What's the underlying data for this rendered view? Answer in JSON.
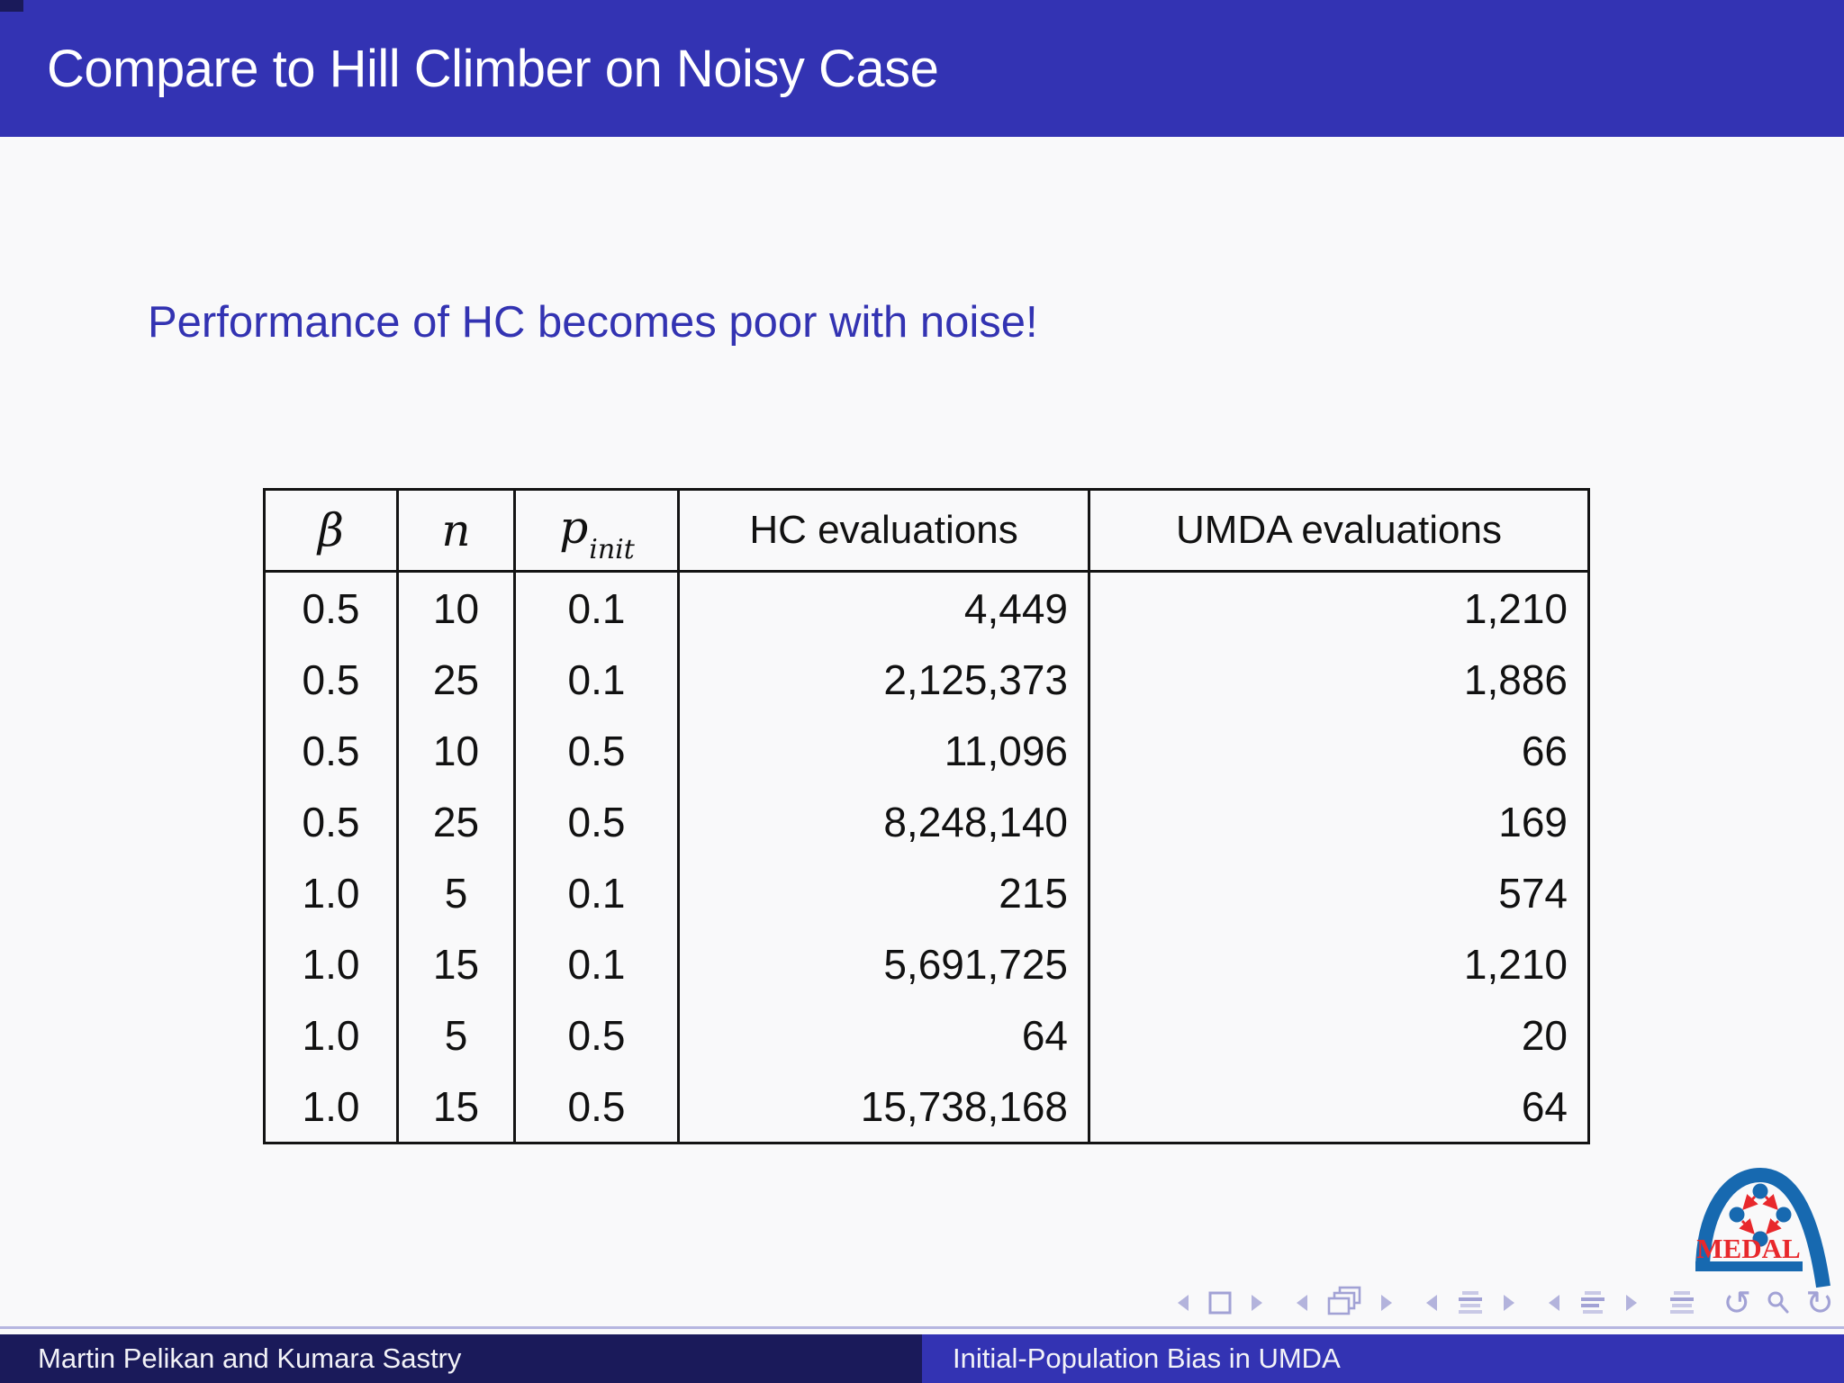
{
  "header": {
    "title": "Compare to Hill Climber on Noisy Case"
  },
  "body": {
    "subtitle": "Performance of HC becomes poor with noise!"
  },
  "table": {
    "columns": [
      {
        "label": "β",
        "math": true
      },
      {
        "label": "n",
        "math": true
      },
      {
        "label": "p",
        "sub": "init",
        "math": true
      },
      {
        "label": "HC evaluations"
      },
      {
        "label": "UMDA evaluations"
      }
    ],
    "rows": [
      [
        "0.5",
        "10",
        "0.1",
        "4,449",
        "1,210"
      ],
      [
        "0.5",
        "25",
        "0.1",
        "2,125,373",
        "1,886"
      ],
      [
        "0.5",
        "10",
        "0.5",
        "11,096",
        "66"
      ],
      [
        "0.5",
        "25",
        "0.5",
        "8,248,140",
        "169"
      ],
      [
        "1.0",
        "5",
        "0.1",
        "215",
        "574"
      ],
      [
        "1.0",
        "15",
        "0.1",
        "5,691,725",
        "1,210"
      ],
      [
        "1.0",
        "5",
        "0.5",
        "64",
        "20"
      ],
      [
        "1.0",
        "15",
        "0.5",
        "15,738,168",
        "64"
      ]
    ]
  },
  "logo": {
    "text": "MEDAL"
  },
  "navigation": {
    "groups": [
      [
        {
          "name": "prev-slide-icon",
          "type": "tri-left"
        },
        {
          "name": "slide-icon",
          "type": "square"
        },
        {
          "name": "next-slide-icon",
          "type": "tri-right"
        }
      ],
      [
        {
          "name": "prev-frame-icon",
          "type": "tri-left"
        },
        {
          "name": "frame-icon",
          "type": "frames"
        },
        {
          "name": "next-frame-icon",
          "type": "tri-right"
        }
      ],
      [
        {
          "name": "prev-subsection-icon",
          "type": "tri-left"
        },
        {
          "name": "subsection-icon",
          "type": "lines"
        },
        {
          "name": "next-subsection-icon",
          "type": "tri-right"
        }
      ],
      [
        {
          "name": "prev-section-icon",
          "type": "tri-left"
        },
        {
          "name": "section-icon",
          "type": "lines-mark"
        },
        {
          "name": "next-section-icon",
          "type": "tri-right"
        }
      ],
      [
        {
          "name": "appendix-icon",
          "type": "lines"
        }
      ],
      [
        {
          "name": "back-icon",
          "type": "undo"
        },
        {
          "name": "search-icon",
          "type": "search"
        },
        {
          "name": "forward-icon",
          "type": "redo"
        }
      ]
    ]
  },
  "footer": {
    "authors": "Martin Pelikan and Kumara Sastry",
    "title": "Initial-Population Bias in UMDA"
  },
  "colors": {
    "header_bg": "#3333B3",
    "dark_bg": "#1A1A5A",
    "structure_text": "#3333B2",
    "nav_symbols": "#A2A2D5",
    "logo_blue": "#1769B0",
    "logo_red": "#E8282C"
  }
}
